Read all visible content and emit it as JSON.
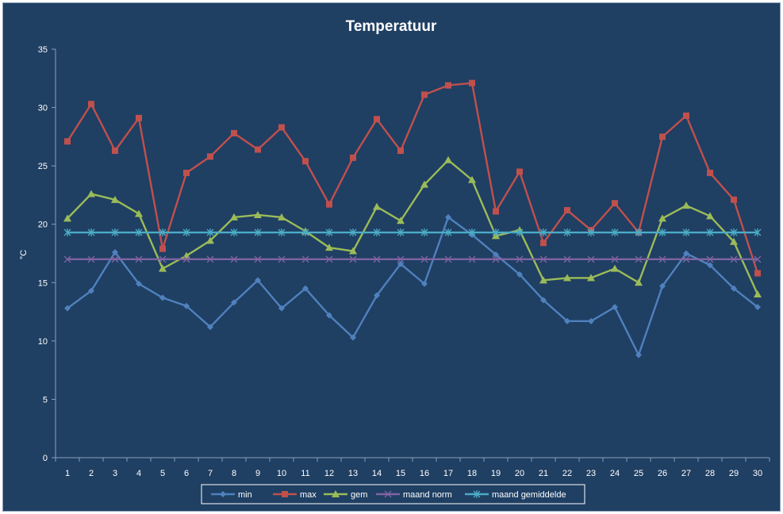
{
  "chart_data": {
    "type": "line",
    "title": "Temperatuur",
    "xlabel": "",
    "ylabel": "°C",
    "ylim": [
      0,
      35
    ],
    "yticks": [
      0,
      5,
      10,
      15,
      20,
      25,
      30,
      35
    ],
    "x": [
      1,
      2,
      3,
      4,
      5,
      6,
      7,
      8,
      9,
      10,
      11,
      12,
      13,
      14,
      15,
      16,
      17,
      18,
      19,
      20,
      21,
      22,
      23,
      24,
      25,
      26,
      27,
      28,
      29,
      30
    ],
    "grid": false,
    "legend_position": "bottom",
    "series": [
      {
        "name": "min",
        "color": "#4f81bd",
        "marker": "diamond",
        "values": [
          12.8,
          14.3,
          17.6,
          14.9,
          13.7,
          13.0,
          11.2,
          13.3,
          15.2,
          12.8,
          14.5,
          12.2,
          10.3,
          13.9,
          16.6,
          14.9,
          20.6,
          19.1,
          17.4,
          15.7,
          13.5,
          11.7,
          11.7,
          12.9,
          8.8,
          14.7,
          17.5,
          16.5,
          14.5,
          12.9
        ]
      },
      {
        "name": "max",
        "color": "#c0504d",
        "marker": "square",
        "values": [
          27.1,
          30.3,
          26.3,
          29.1,
          17.9,
          24.4,
          25.8,
          27.8,
          26.4,
          28.3,
          25.4,
          21.7,
          25.7,
          29.0,
          26.3,
          31.1,
          31.9,
          32.1,
          21.1,
          24.5,
          18.4,
          21.2,
          19.5,
          21.8,
          19.3,
          27.5,
          29.3,
          24.4,
          22.1,
          15.8
        ]
      },
      {
        "name": "gem",
        "color": "#9bbb59",
        "marker": "triangle",
        "values": [
          20.5,
          22.6,
          22.1,
          20.9,
          16.2,
          17.3,
          18.6,
          20.6,
          20.8,
          20.6,
          19.4,
          18.0,
          17.7,
          21.5,
          20.3,
          23.4,
          25.5,
          23.8,
          19.0,
          19.5,
          15.2,
          15.4,
          15.4,
          16.2,
          15.0,
          20.5,
          21.6,
          20.7,
          18.5,
          14.0
        ]
      },
      {
        "name": "maand norm",
        "color": "#8064a2",
        "marker": "x",
        "values": [
          17.0,
          17.0,
          17.0,
          17.0,
          17.0,
          17.0,
          17.0,
          17.0,
          17.0,
          17.0,
          17.0,
          17.0,
          17.0,
          17.0,
          17.0,
          17.0,
          17.0,
          17.0,
          17.0,
          17.0,
          17.0,
          17.0,
          17.0,
          17.0,
          17.0,
          17.0,
          17.0,
          17.0,
          17.0,
          17.0
        ]
      },
      {
        "name": "maand gemiddelde",
        "color": "#4bacc6",
        "marker": "star",
        "values": [
          19.3,
          19.3,
          19.3,
          19.3,
          19.3,
          19.3,
          19.3,
          19.3,
          19.3,
          19.3,
          19.3,
          19.3,
          19.3,
          19.3,
          19.3,
          19.3,
          19.3,
          19.3,
          19.3,
          19.3,
          19.3,
          19.3,
          19.3,
          19.3,
          19.3,
          19.3,
          19.3,
          19.3,
          19.3,
          19.3
        ]
      }
    ]
  }
}
